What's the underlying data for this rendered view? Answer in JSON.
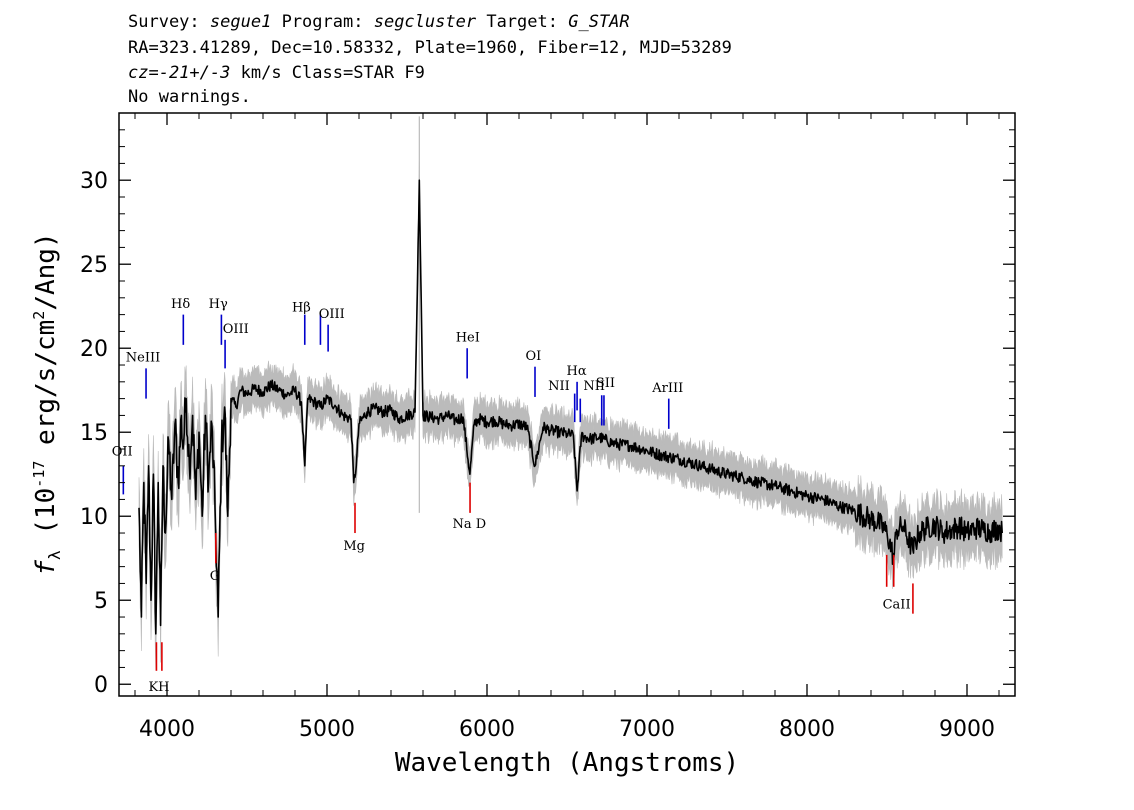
{
  "header": {
    "survey_label": "Survey:",
    "survey": "segue1",
    "program_label": "Program:",
    "program": "segcluster",
    "target_label": "Target:",
    "target": "G_STAR",
    "line2": "RA=323.41289, Dec=10.58332, Plate=1960, Fiber=12, MJD=53289",
    "cz_label": "cz=",
    "cz": "-21+/-3",
    "cz_rest": " km/s Class=STAR F9",
    "line4": "No warnings."
  },
  "colors": {
    "emission": "#0000cc",
    "absorption": "#dd0000",
    "spectrum": "#000000",
    "error": "#bbbbbb"
  },
  "chart_data": {
    "type": "line",
    "xlabel": "Wavelength (Angstroms)",
    "ylabel": "f_λ (10^-17 erg/s/cm^2/Ang)",
    "ylabel_parts": [
      "f",
      "λ",
      " (10",
      "-17",
      " erg/s/cm",
      "2",
      "/Ang)"
    ],
    "xlim": [
      3700,
      9300
    ],
    "ylim": [
      -0.7,
      34.0
    ],
    "xticks": [
      4000,
      5000,
      6000,
      7000,
      8000,
      9000
    ],
    "xtick_labels": [
      "4000",
      "5000",
      "6000",
      "7000",
      "8000",
      "9000"
    ],
    "yticks": [
      0,
      5,
      10,
      15,
      20,
      25,
      30
    ],
    "ytick_labels": [
      "0",
      "5",
      "10",
      "15",
      "20",
      "25",
      "30"
    ],
    "grid": false,
    "series": [
      {
        "x": [
          3825,
          3840,
          3855,
          3870,
          3885,
          3900,
          3915,
          3930,
          3945,
          3960,
          3975,
          3990,
          4010,
          4030,
          4050,
          4070,
          4090,
          4100,
          4120,
          4140,
          4160,
          4180,
          4200,
          4220,
          4240,
          4260,
          4280,
          4300,
          4320,
          4340,
          4360,
          4380,
          4400,
          4430,
          4460,
          4500,
          4550,
          4600,
          4650,
          4700,
          4750,
          4800,
          4840,
          4861,
          4880,
          4920,
          4960,
          5000,
          5050,
          5100,
          5150,
          5167,
          5183,
          5200,
          5250,
          5300,
          5350,
          5400,
          5450,
          5500,
          5550,
          5577,
          5600,
          5650,
          5700,
          5750,
          5800,
          5850,
          5893,
          5920,
          5950,
          6000,
          6050,
          6100,
          6150,
          6200,
          6250,
          6300,
          6350,
          6400,
          6450,
          6500,
          6540,
          6563,
          6590,
          6650,
          6700,
          6750,
          6800,
          6900,
          7000,
          7100,
          7200,
          7300,
          7400,
          7500,
          7600,
          7700,
          7800,
          7900,
          8000,
          8100,
          8200,
          8300,
          8400,
          8450,
          8500,
          8542,
          8560,
          8600,
          8662,
          8700,
          8750,
          8800,
          8850,
          8900,
          8950,
          9000,
          9050,
          9100,
          9150,
          9200,
          9220
        ],
        "y": [
          10.5,
          4.0,
          12.0,
          6.0,
          13.0,
          5.0,
          12.5,
          3.0,
          12.0,
          3.5,
          13.0,
          9.0,
          14.5,
          11.0,
          15.5,
          12.0,
          16.0,
          14.0,
          17.0,
          13.0,
          16.0,
          11.0,
          15.0,
          10.0,
          16.0,
          12.0,
          15.5,
          10.5,
          4.0,
          14.0,
          16.5,
          10.0,
          17.0,
          16.5,
          17.5,
          17.3,
          17.6,
          17.4,
          17.8,
          17.5,
          17.2,
          17.5,
          16.8,
          13.0,
          17.0,
          16.8,
          16.5,
          17.0,
          16.6,
          16.0,
          15.8,
          12.0,
          13.0,
          15.5,
          16.2,
          16.4,
          16.2,
          16.3,
          15.8,
          16.0,
          16.2,
          30.0,
          16.0,
          15.9,
          15.8,
          16.0,
          15.7,
          15.9,
          12.5,
          15.5,
          15.8,
          15.6,
          15.7,
          15.5,
          15.4,
          15.5,
          15.3,
          13.0,
          15.3,
          15.1,
          15.0,
          14.9,
          14.8,
          11.5,
          14.8,
          14.6,
          14.7,
          14.5,
          14.3,
          14.2,
          13.9,
          13.6,
          13.4,
          13.1,
          12.8,
          12.5,
          12.3,
          12.0,
          11.8,
          11.5,
          11.2,
          11.0,
          10.6,
          10.3,
          9.8,
          9.6,
          9.0,
          7.5,
          9.2,
          9.4,
          8.0,
          9.0,
          9.3,
          9.5,
          9.0,
          9.2,
          9.4,
          9.0,
          9.3,
          9.2,
          9.1,
          9.3,
          9.0
        ]
      }
    ],
    "emission_lines": [
      {
        "name": "OII",
        "wave": 3727,
        "y0": 11.3,
        "y1": 13.0
      },
      {
        "name": "NeIII",
        "wave": 3869,
        "y0": 17.0,
        "y1": 18.8
      },
      {
        "name": "Hδ",
        "wave": 4102,
        "y0": 20.2,
        "y1": 22.0
      },
      {
        "name": "Hγ",
        "wave": 4340,
        "y0": 20.2,
        "y1": 22.0
      },
      {
        "name": "OIII",
        "wave": 4363,
        "y0": 18.8,
        "y1": 20.5
      },
      {
        "name": "Hβ",
        "wave": 4861,
        "y0": 20.2,
        "y1": 22.0
      },
      {
        "name": "OIII",
        "wave": 4959,
        "y0": 20.2,
        "y1": 22.0
      },
      {
        "name": "OIII",
        "wave": 5007,
        "y0": 19.8,
        "y1": 21.4
      },
      {
        "name": "HeI",
        "wave": 5876,
        "y0": 18.2,
        "y1": 20.0
      },
      {
        "name": "OI",
        "wave": 6300,
        "y0": 17.1,
        "y1": 18.9
      },
      {
        "name": "NII",
        "wave": 6548,
        "y0": 15.6,
        "y1": 17.3
      },
      {
        "name": "Hα",
        "wave": 6563,
        "y0": 16.3,
        "y1": 18.0
      },
      {
        "name": "NII",
        "wave": 6583,
        "y0": 15.6,
        "y1": 17.0
      },
      {
        "name": "SII",
        "wave": 6717,
        "y0": 15.4,
        "y1": 17.2
      },
      {
        "name": "SII",
        "wave": 6731,
        "y0": 15.4,
        "y1": 17.2
      },
      {
        "name": "ArIII",
        "wave": 7136,
        "y0": 15.2,
        "y1": 17.0
      }
    ],
    "absorption_lines": [
      {
        "name": "K",
        "wave": 3934,
        "y0": 0.8,
        "y1": 2.5
      },
      {
        "name": "H",
        "wave": 3968,
        "y0": 0.8,
        "y1": 2.5
      },
      {
        "name": "G",
        "wave": 4305,
        "y0": 7.2,
        "y1": 9.0
      },
      {
        "name": "Mg",
        "wave": 5175,
        "y0": 9.0,
        "y1": 10.8
      },
      {
        "name": "Na D",
        "wave": 5894,
        "y0": 10.2,
        "y1": 12.0
      },
      {
        "name": "CaII",
        "wave": 8498,
        "y0": 5.8,
        "y1": 7.7
      },
      {
        "name": "CaII",
        "wave": 8542,
        "y0": 5.8,
        "y1": 7.7
      },
      {
        "name": "CaII",
        "wave": 8662,
        "y0": 4.2,
        "y1": 6.0
      }
    ],
    "line_labels": [
      {
        "text": "OII",
        "wave": 3720,
        "y": 13.6
      },
      {
        "text": "NeIII",
        "wave": 3850,
        "y": 19.2
      },
      {
        "text": "Hδ",
        "wave": 4085,
        "y": 22.4
      },
      {
        "text": "Hγ",
        "wave": 4320,
        "y": 22.4
      },
      {
        "text": "OIII",
        "wave": 4430,
        "y": 20.9
      },
      {
        "text": "Hβ",
        "wave": 4840,
        "y": 22.2
      },
      {
        "text": "OIII",
        "wave": 5030,
        "y": 21.8
      },
      {
        "text": "HeI",
        "wave": 5880,
        "y": 20.4
      },
      {
        "text": "OI",
        "wave": 6290,
        "y": 19.3
      },
      {
        "text": "NII",
        "wave": 6450,
        "y": 17.5
      },
      {
        "text": "Hα",
        "wave": 6560,
        "y": 18.4
      },
      {
        "text": "NII",
        "wave": 6670,
        "y": 17.5
      },
      {
        "text": "SII",
        "wave": 6740,
        "y": 17.7
      },
      {
        "text": "ArIII",
        "wave": 7130,
        "y": 17.4
      },
      {
        "text": "KH",
        "wave": 3950,
        "y": -0.4
      },
      {
        "text": "G",
        "wave": 4300,
        "y": 6.2
      },
      {
        "text": "Mg",
        "wave": 5170,
        "y": 8.0
      },
      {
        "text": "Na D",
        "wave": 5890,
        "y": 9.3
      },
      {
        "text": "CaII",
        "wave": 8560,
        "y": 4.5
      }
    ]
  }
}
